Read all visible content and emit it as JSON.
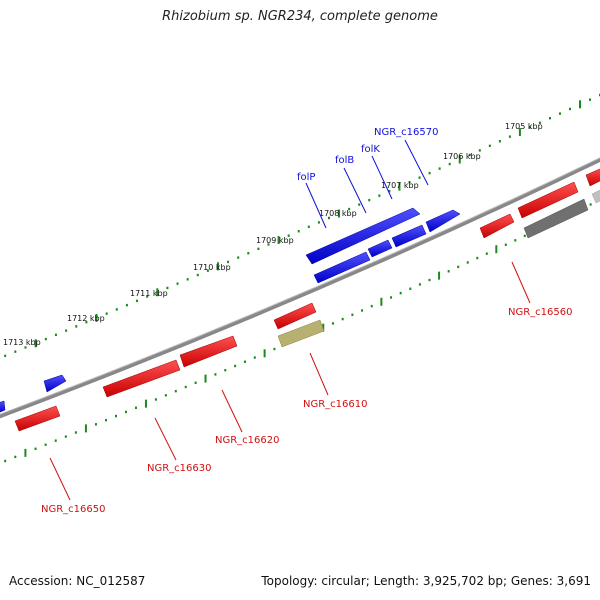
{
  "title": "Rhizobium sp. NGR234, complete genome",
  "footer": {
    "accession": "Accession: NC_012587",
    "summary": "Topology: circular; Length: 3,925,702 bp; Genes: 3,691"
  },
  "colors": {
    "forward": "#1010e0",
    "reverse": "#e01010",
    "backbone": "#808080",
    "tick": "#1a8a1a",
    "olive": "#b8b070",
    "gray_gene": "#707070"
  },
  "kbp_labels": [
    "1705 kbp",
    "1706 kbp",
    "1707 kbp",
    "1708 kbp",
    "1709 kbp",
    "1710 kbp",
    "1711 kbp",
    "1712 kbp",
    "1713 kbp"
  ],
  "gene_labels": {
    "top": [
      "NGR_c16570",
      "folK",
      "folB",
      "folP"
    ],
    "bottom": [
      "NGR_c16560",
      "NGR_c16610",
      "NGR_c16620",
      "NGR_c16630",
      "NGR_c16650"
    ]
  }
}
